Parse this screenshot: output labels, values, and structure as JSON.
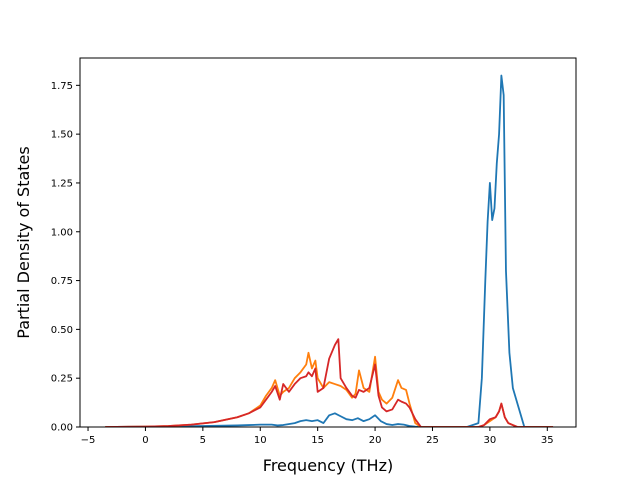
{
  "chart_data": {
    "type": "line",
    "title": "",
    "xlabel": "Frequency (THz)",
    "ylabel": "Partial Density of States",
    "xlim": [
      -5.7,
      37.5
    ],
    "ylim": [
      0.0,
      1.89
    ],
    "xticks": [
      -5,
      0,
      5,
      10,
      15,
      20,
      25,
      30,
      35
    ],
    "xtick_labels": [
      "−5",
      "0",
      "5",
      "10",
      "15",
      "20",
      "25",
      "30",
      "35"
    ],
    "yticks": [
      0.0,
      0.25,
      0.5,
      0.75,
      1.0,
      1.25,
      1.5,
      1.75
    ],
    "ytick_labels": [
      "0.00",
      "0.25",
      "0.50",
      "0.75",
      "1.00",
      "1.25",
      "1.50",
      "1.75"
    ],
    "grid": false,
    "legend": "none",
    "series": [
      {
        "color": "#1f77b4",
        "x": [
          -3.5,
          0,
          5,
          8,
          9,
          10,
          11,
          11.5,
          12,
          13,
          13.5,
          14,
          14.5,
          15,
          15.5,
          16,
          16.5,
          17,
          17.5,
          18,
          18.5,
          19,
          19.5,
          20,
          20.5,
          21,
          21.5,
          22,
          22.5,
          23,
          23.5,
          24,
          28,
          29,
          29.3,
          29.6,
          29.8,
          30,
          30.2,
          30.4,
          30.6,
          30.8,
          31,
          31.2,
          31.4,
          31.7,
          32,
          32.4,
          33,
          35.5
        ],
        "y": [
          0.0,
          0.002,
          0.005,
          0.008,
          0.01,
          0.012,
          0.012,
          0.008,
          0.01,
          0.02,
          0.03,
          0.035,
          0.03,
          0.035,
          0.02,
          0.06,
          0.07,
          0.055,
          0.04,
          0.035,
          0.045,
          0.03,
          0.04,
          0.06,
          0.03,
          0.015,
          0.01,
          0.015,
          0.012,
          0.005,
          0.002,
          0.0,
          0.0,
          0.02,
          0.25,
          0.75,
          1.05,
          1.25,
          1.06,
          1.12,
          1.35,
          1.5,
          1.8,
          1.7,
          0.8,
          0.38,
          0.2,
          0.12,
          0.0,
          0.0
        ]
      },
      {
        "color": "#ff7f0e",
        "x": [
          -3.5,
          0,
          2,
          4,
          6,
          8,
          9,
          10,
          10.5,
          11,
          11.3,
          11.7,
          12,
          12.5,
          13,
          13.5,
          14,
          14.2,
          14.5,
          14.8,
          15,
          15.5,
          16,
          16.5,
          17,
          17.5,
          18,
          18.3,
          18.6,
          19,
          19.5,
          20,
          20.3,
          20.6,
          21,
          21.5,
          22,
          22.3,
          22.7,
          23,
          23.5,
          24,
          29,
          29.5,
          30,
          30.5,
          30.8,
          31,
          31.3,
          31.6,
          32,
          32.4,
          35.5
        ],
        "y": [
          0.0,
          0.002,
          0.005,
          0.012,
          0.025,
          0.05,
          0.07,
          0.11,
          0.16,
          0.2,
          0.24,
          0.16,
          0.18,
          0.2,
          0.25,
          0.28,
          0.32,
          0.38,
          0.3,
          0.34,
          0.25,
          0.2,
          0.23,
          0.22,
          0.21,
          0.19,
          0.15,
          0.17,
          0.29,
          0.2,
          0.18,
          0.36,
          0.18,
          0.14,
          0.12,
          0.15,
          0.24,
          0.2,
          0.19,
          0.12,
          0.02,
          0.0,
          0.0,
          0.01,
          0.03,
          0.05,
          0.08,
          0.12,
          0.05,
          0.02,
          0.01,
          0.0,
          0.0
        ]
      },
      {
        "color": "#d62728",
        "x": [
          -3.5,
          0,
          2,
          4,
          6,
          8,
          9,
          10,
          10.5,
          11,
          11.3,
          11.7,
          12,
          12.5,
          13,
          13.5,
          14,
          14.2,
          14.5,
          14.8,
          15,
          15.5,
          16,
          16.5,
          16.8,
          17,
          17.5,
          18,
          18.3,
          18.6,
          19,
          19.5,
          20,
          20.3,
          20.6,
          21,
          21.5,
          22,
          22.3,
          22.7,
          23,
          23.5,
          24,
          29,
          29.5,
          30,
          30.5,
          30.8,
          31,
          31.3,
          31.6,
          32,
          32.4,
          35.5
        ],
        "y": [
          0.0,
          0.002,
          0.005,
          0.012,
          0.025,
          0.05,
          0.07,
          0.1,
          0.14,
          0.18,
          0.21,
          0.14,
          0.22,
          0.18,
          0.22,
          0.25,
          0.26,
          0.28,
          0.26,
          0.3,
          0.18,
          0.2,
          0.35,
          0.42,
          0.45,
          0.25,
          0.2,
          0.16,
          0.15,
          0.19,
          0.18,
          0.2,
          0.32,
          0.16,
          0.1,
          0.08,
          0.09,
          0.14,
          0.13,
          0.12,
          0.1,
          0.04,
          0.0,
          0.0,
          0.01,
          0.04,
          0.05,
          0.08,
          0.12,
          0.05,
          0.02,
          0.01,
          0.0,
          0.0
        ]
      }
    ]
  }
}
